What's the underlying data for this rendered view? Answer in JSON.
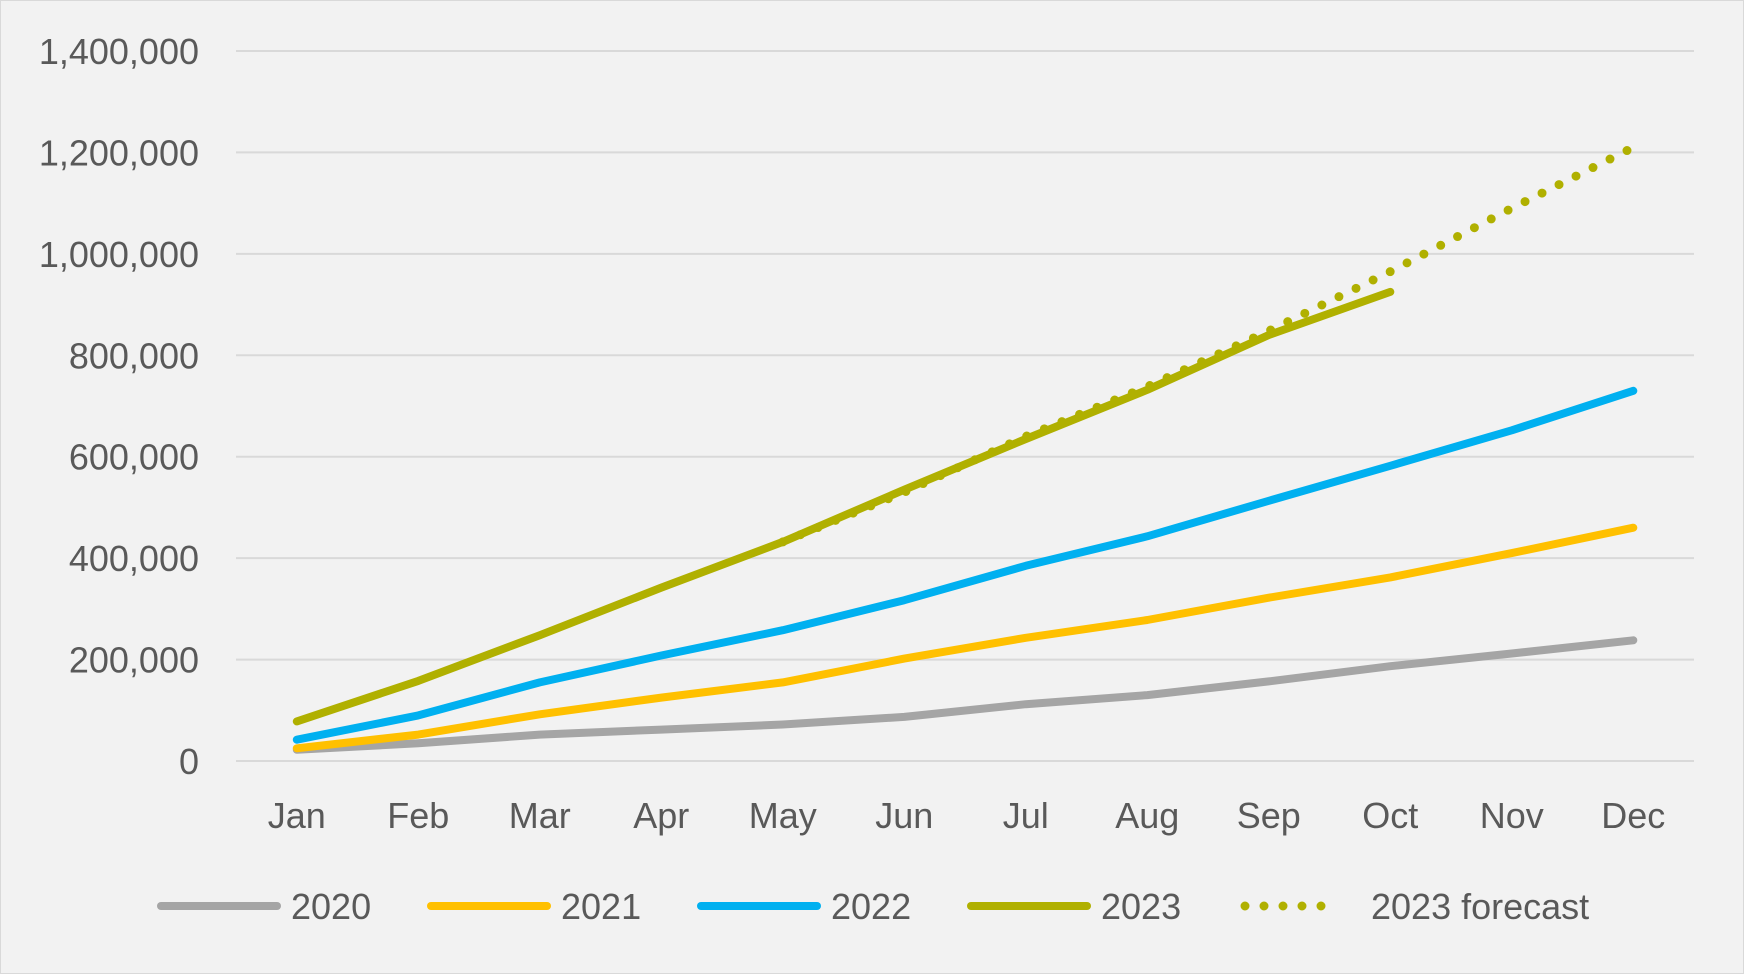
{
  "chart_data": {
    "type": "line",
    "title": "",
    "xlabel": "",
    "ylabel": "",
    "categories": [
      "Jan",
      "Feb",
      "Mar",
      "Apr",
      "May",
      "Jun",
      "Jul",
      "Aug",
      "Sep",
      "Oct",
      "Nov",
      "Dec"
    ],
    "ylim": [
      0,
      1400000
    ],
    "yticks": [
      0,
      200000,
      400000,
      600000,
      800000,
      1000000,
      1200000,
      1400000
    ],
    "ytick_labels": [
      "0",
      "200,000",
      "400,000",
      "600,000",
      "800,000",
      "1,000,000",
      "1,200,000",
      "1,400,000"
    ],
    "grid": true,
    "legend_position": "bottom",
    "series": [
      {
        "name": "2020",
        "color": "#a5a5a5",
        "style": "solid",
        "values": [
          22000,
          35000,
          52000,
          62000,
          72000,
          87000,
          112000,
          130000,
          157000,
          187000,
          212000,
          238000
        ]
      },
      {
        "name": "2021",
        "color": "#ffc000",
        "style": "solid",
        "values": [
          25000,
          52000,
          92000,
          125000,
          155000,
          202000,
          243000,
          278000,
          322000,
          362000,
          410000,
          460000
        ]
      },
      {
        "name": "2022",
        "color": "#00b0f0",
        "style": "solid",
        "values": [
          42000,
          90000,
          155000,
          208000,
          258000,
          317000,
          385000,
          443000,
          513000,
          582000,
          652000,
          730000
        ]
      },
      {
        "name": "2023",
        "color": "#b0b000",
        "style": "solid",
        "values": [
          78000,
          158000,
          248000,
          342000,
          432000,
          535000,
          635000,
          732000,
          840000,
          925000,
          null,
          null
        ]
      },
      {
        "name": "2023 forecast",
        "color": "#b0b000",
        "style": "dotted",
        "values": [
          null,
          null,
          null,
          null,
          432000,
          530000,
          640000,
          738000,
          848000,
          965000,
          1090000,
          1210000
        ]
      }
    ]
  }
}
